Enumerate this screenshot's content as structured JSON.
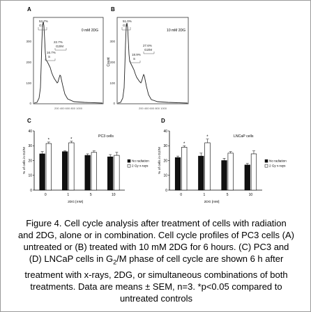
{
  "panels": {
    "A": {
      "letter": "A",
      "label": "0 mM 2DG",
      "y_ticks": [
        "300",
        "200",
        "100",
        "0"
      ],
      "x_tick_label": "200 400 600 800 1000",
      "g1": [
        "52.7%",
        "G1"
      ],
      "g2m": [
        "22.7%",
        "G2/M"
      ],
      "s": [
        "16.7%",
        "S"
      ]
    },
    "B": {
      "letter": "B",
      "label": "10 mM 2DG",
      "ylabel": "Count",
      "y_ticks": [
        "300",
        "200",
        "100",
        "0"
      ],
      "x_tick_label": "200 400 600 800 1000",
      "g1": [
        "51.0%",
        "G1"
      ],
      "g2m": [
        "27.6%",
        "G2/M"
      ],
      "s": [
        "18.9%",
        "S"
      ]
    }
  },
  "legend": {
    "no_radiation": "No radiation",
    "radiation": "2 Gy x-rays"
  },
  "colors": {
    "no_radiation": "#111111",
    "radiation": "#ffffff",
    "histogram": "#222222"
  },
  "caption": {
    "line1": "Figure 4. Cell cycle analysis after treatment of cells with radiation",
    "line2": "and 2DG, alone or in combination. Cell cycle profiles of PC3 cells (A)",
    "line3": "untreated or (B) treated with 10 mM 2DG for 6 hours. (C) PC3 and",
    "line4_pre": "(D) LNCaP cells in G",
    "line4_sub": "2",
    "line4_post": "/M phase of cell cycle are shown 6 h after",
    "line5": "treatment with x-rays, 2DG, or simultaneous combinations of both",
    "line6": "treatments. Data are means ± SEM, n=3. *p<0.05 compared to",
    "line7": "untreated controls"
  },
  "chart_data": [
    {
      "panel": "C",
      "type": "bar",
      "title": "PC3 cells",
      "xlabel": "2DG [mM]",
      "ylabel": "% of cells in G2/M",
      "categories": [
        "0",
        "1",
        "5",
        "10"
      ],
      "ylim": [
        0,
        40
      ],
      "yticks": [
        0,
        10,
        20,
        30,
        40
      ],
      "series": [
        {
          "name": "No radiation",
          "values": [
            24.5,
            26.0,
            23.5,
            22.5
          ],
          "errors": [
            1.5,
            0.5,
            1.0,
            1.5
          ]
        },
        {
          "name": "2 Gy x-rays",
          "values": [
            31.5,
            32.0,
            25.5,
            23.5
          ],
          "errors": [
            1.0,
            1.0,
            1.0,
            2.0
          ]
        }
      ],
      "significance": [
        "*",
        "*",
        "",
        ""
      ],
      "legend_position": "right"
    },
    {
      "panel": "D",
      "type": "bar",
      "title": "LNCaP cells",
      "xlabel": "2DG [mM]",
      "ylabel": "% of cells in G2/M",
      "categories": [
        "0",
        "1",
        "5",
        "10"
      ],
      "ylim": [
        0,
        40
      ],
      "yticks": [
        0,
        10,
        20,
        30,
        40
      ],
      "series": [
        {
          "name": "No radiation",
          "values": [
            22.0,
            23.0,
            20.0,
            17.0
          ],
          "errors": [
            1.0,
            2.0,
            1.5,
            1.0
          ]
        },
        {
          "name": "2 Gy x-rays",
          "values": [
            29.0,
            32.0,
            25.0,
            24.5
          ],
          "errors": [
            1.0,
            2.5,
            1.0,
            2.0
          ]
        }
      ],
      "significance": [
        "*",
        "*",
        "",
        ""
      ],
      "legend_position": "right"
    }
  ]
}
